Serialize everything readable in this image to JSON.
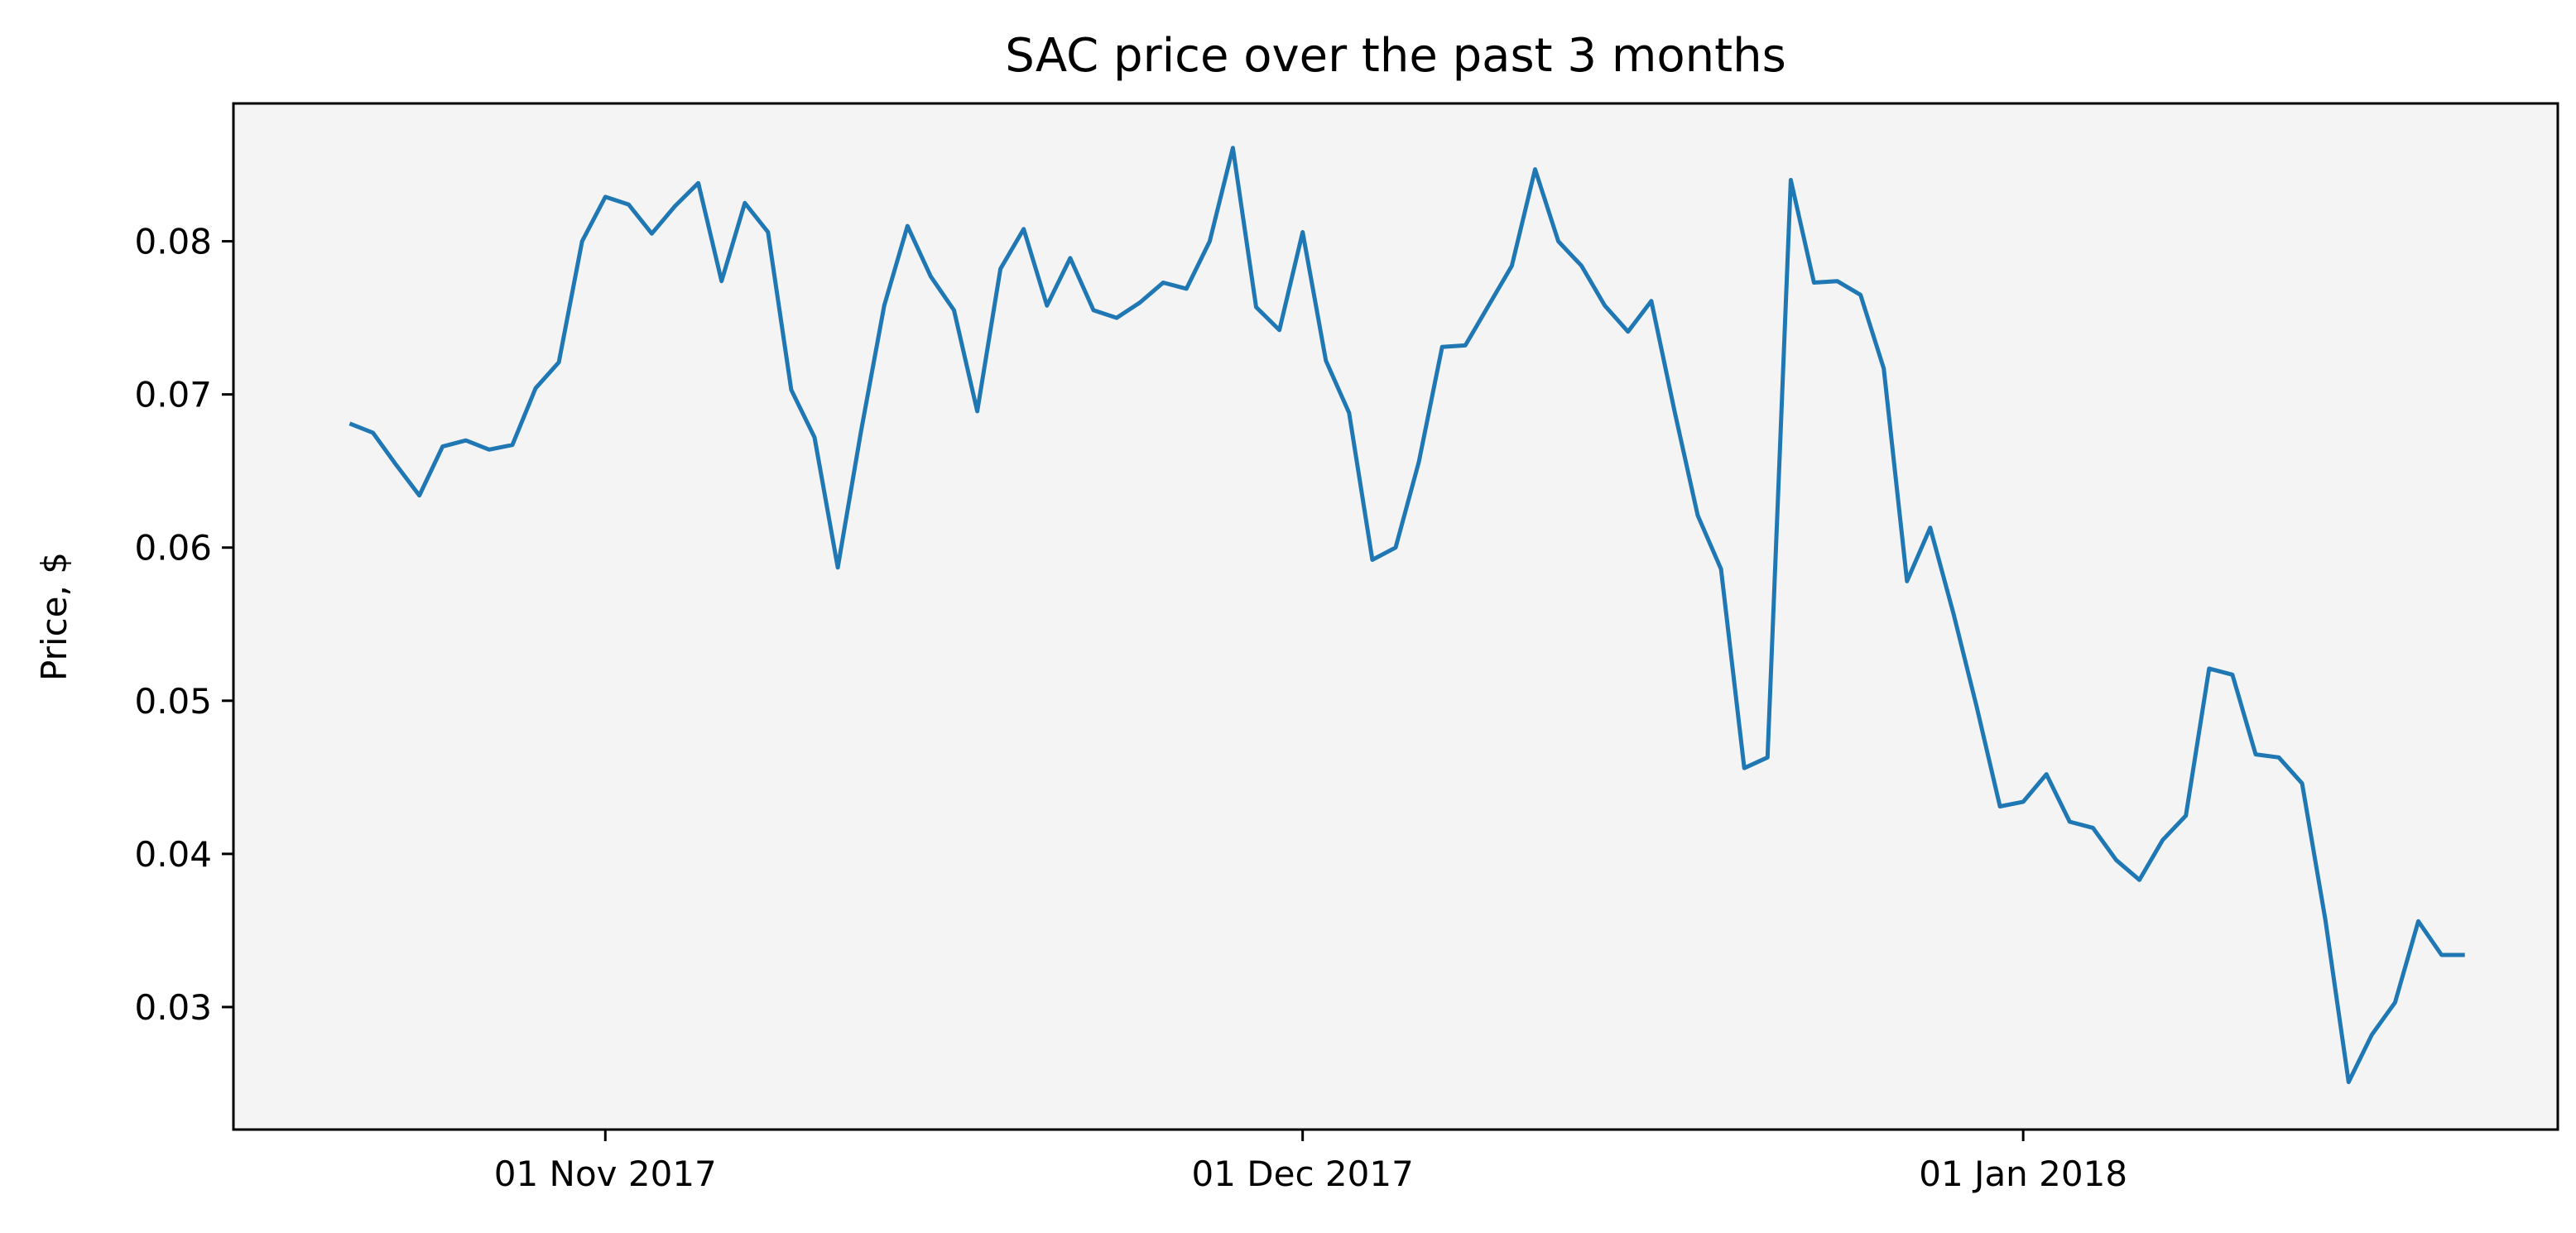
{
  "chart_data": {
    "type": "line",
    "title": "SAC price over the past 3 months",
    "xlabel": "",
    "ylabel": "Price, $",
    "x_ticks": [
      {
        "date": "2017-11-01",
        "label": "01 Nov 2017"
      },
      {
        "date": "2017-12-01",
        "label": "01 Dec 2017"
      },
      {
        "date": "2018-01-01",
        "label": "01 Jan 2018"
      }
    ],
    "y_ticks": [
      0.03,
      0.04,
      0.05,
      0.06,
      0.07,
      0.08
    ],
    "ylim": [
      0.022,
      0.089
    ],
    "xlim": [
      "2017-10-16",
      "2018-01-24"
    ],
    "grid": false,
    "legend": "none",
    "colors": {
      "line": "#1f77b4",
      "plot_background": "#f4f4f4",
      "axes": "#000000"
    },
    "series": [
      {
        "x": [
          "2017-10-21",
          "2017-10-22",
          "2017-10-23",
          "2017-10-24",
          "2017-10-25",
          "2017-10-26",
          "2017-10-27",
          "2017-10-28",
          "2017-10-29",
          "2017-10-30",
          "2017-10-31",
          "2017-11-01",
          "2017-11-02",
          "2017-11-03",
          "2017-11-04",
          "2017-11-05",
          "2017-11-06",
          "2017-11-07",
          "2017-11-08",
          "2017-11-09",
          "2017-11-10",
          "2017-11-11",
          "2017-11-12",
          "2017-11-13",
          "2017-11-14",
          "2017-11-15",
          "2017-11-16",
          "2017-11-17",
          "2017-11-18",
          "2017-11-19",
          "2017-11-20",
          "2017-11-21",
          "2017-11-22",
          "2017-11-23",
          "2017-11-24",
          "2017-11-25",
          "2017-11-26",
          "2017-11-27",
          "2017-11-28",
          "2017-11-29",
          "2017-11-30",
          "2017-12-01",
          "2017-12-02",
          "2017-12-03",
          "2017-12-04",
          "2017-12-05",
          "2017-12-06",
          "2017-12-07",
          "2017-12-08",
          "2017-12-09",
          "2017-12-10",
          "2017-12-11",
          "2017-12-12",
          "2017-12-13",
          "2017-12-14",
          "2017-12-15",
          "2017-12-16",
          "2017-12-17",
          "2017-12-18",
          "2017-12-19",
          "2017-12-20",
          "2017-12-21",
          "2017-12-22",
          "2017-12-23",
          "2017-12-24",
          "2017-12-25",
          "2017-12-26",
          "2017-12-27",
          "2017-12-28",
          "2017-12-29",
          "2017-12-30",
          "2017-12-31",
          "2018-01-01",
          "2018-01-02",
          "2018-01-03",
          "2018-01-04",
          "2018-01-05",
          "2018-01-06",
          "2018-01-07",
          "2018-01-08",
          "2018-01-09",
          "2018-01-10",
          "2018-01-11",
          "2018-01-12",
          "2018-01-13",
          "2018-01-14",
          "2018-01-15",
          "2018-01-16",
          "2018-01-17",
          "2018-01-18",
          "2018-01-19",
          "2018-01-20"
        ],
        "values": [
          0.0681,
          0.0675,
          0.0654,
          0.0634,
          0.0666,
          0.067,
          0.0664,
          0.0667,
          0.0704,
          0.0721,
          0.08,
          0.0829,
          0.0824,
          0.0805,
          0.0823,
          0.0838,
          0.0774,
          0.0825,
          0.0806,
          0.0703,
          0.0672,
          0.0587,
          0.0676,
          0.0758,
          0.081,
          0.0777,
          0.0755,
          0.0689,
          0.0782,
          0.0808,
          0.0758,
          0.0789,
          0.0755,
          0.075,
          0.076,
          0.0773,
          0.0769,
          0.08,
          0.0861,
          0.0757,
          0.0742,
          0.0806,
          0.0722,
          0.0688,
          0.0592,
          0.06,
          0.0656,
          0.0731,
          0.0732,
          0.0758,
          0.0784,
          0.0847,
          0.08,
          0.0784,
          0.0758,
          0.0741,
          0.0761,
          0.0689,
          0.0621,
          0.0586,
          0.0456,
          0.0463,
          0.084,
          0.0773,
          0.0774,
          0.0765,
          0.0717,
          0.0578,
          0.0613,
          0.0557,
          0.0496,
          0.0431,
          0.0434,
          0.0452,
          0.0421,
          0.0417,
          0.0396,
          0.0383,
          0.0409,
          0.0425,
          0.0521,
          0.0517,
          0.0465,
          0.0463,
          0.0446,
          0.0357,
          0.0251,
          0.0282,
          0.0303,
          0.0356,
          0.0334,
          0.0334
        ]
      }
    ]
  }
}
